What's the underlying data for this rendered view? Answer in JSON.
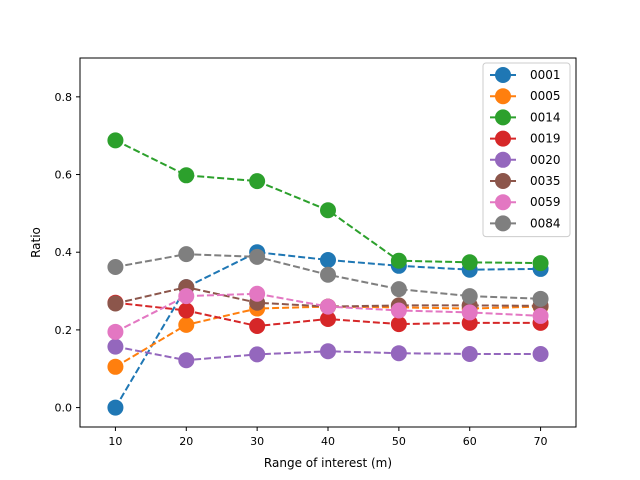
{
  "chart_data": {
    "type": "line",
    "title": "",
    "xlabel": "Range of interest (m)",
    "ylabel": "Ratio",
    "xlim": [
      5,
      75
    ],
    "ylim": [
      -0.05,
      0.9
    ],
    "x": [
      10,
      20,
      30,
      40,
      50,
      60,
      70
    ],
    "xticks": [
      10,
      20,
      30,
      40,
      50,
      60,
      70
    ],
    "yticks": [
      0.0,
      0.2,
      0.4,
      0.6,
      0.8
    ],
    "grid": false,
    "legend_position": "top-right",
    "series": [
      {
        "name": "0001",
        "color": "#1f77b4",
        "values": [
          0.0,
          0.31,
          0.4,
          0.38,
          0.365,
          0.355,
          0.357
        ]
      },
      {
        "name": "0005",
        "color": "#ff7f0e",
        "values": [
          0.105,
          0.213,
          0.255,
          0.26,
          0.258,
          0.255,
          0.26
        ]
      },
      {
        "name": "0014",
        "color": "#2ca02c",
        "values": [
          0.688,
          0.598,
          0.583,
          0.508,
          0.378,
          0.374,
          0.372
        ]
      },
      {
        "name": "0019",
        "color": "#d62728",
        "values": [
          0.27,
          0.25,
          0.21,
          0.228,
          0.215,
          0.218,
          0.218
        ]
      },
      {
        "name": "0020",
        "color": "#9467bd",
        "values": [
          0.157,
          0.122,
          0.137,
          0.145,
          0.14,
          0.138,
          0.138
        ]
      },
      {
        "name": "0035",
        "color": "#8c564b",
        "values": [
          0.268,
          0.31,
          0.27,
          0.26,
          0.263,
          0.263,
          0.262
        ]
      },
      {
        "name": "0059",
        "color": "#e377c2",
        "values": [
          0.195,
          0.287,
          0.293,
          0.26,
          0.25,
          0.245,
          0.236
        ]
      },
      {
        "name": "0084",
        "color": "#7f7f7f",
        "values": [
          0.362,
          0.395,
          0.388,
          0.342,
          0.305,
          0.287,
          0.28
        ]
      }
    ]
  }
}
